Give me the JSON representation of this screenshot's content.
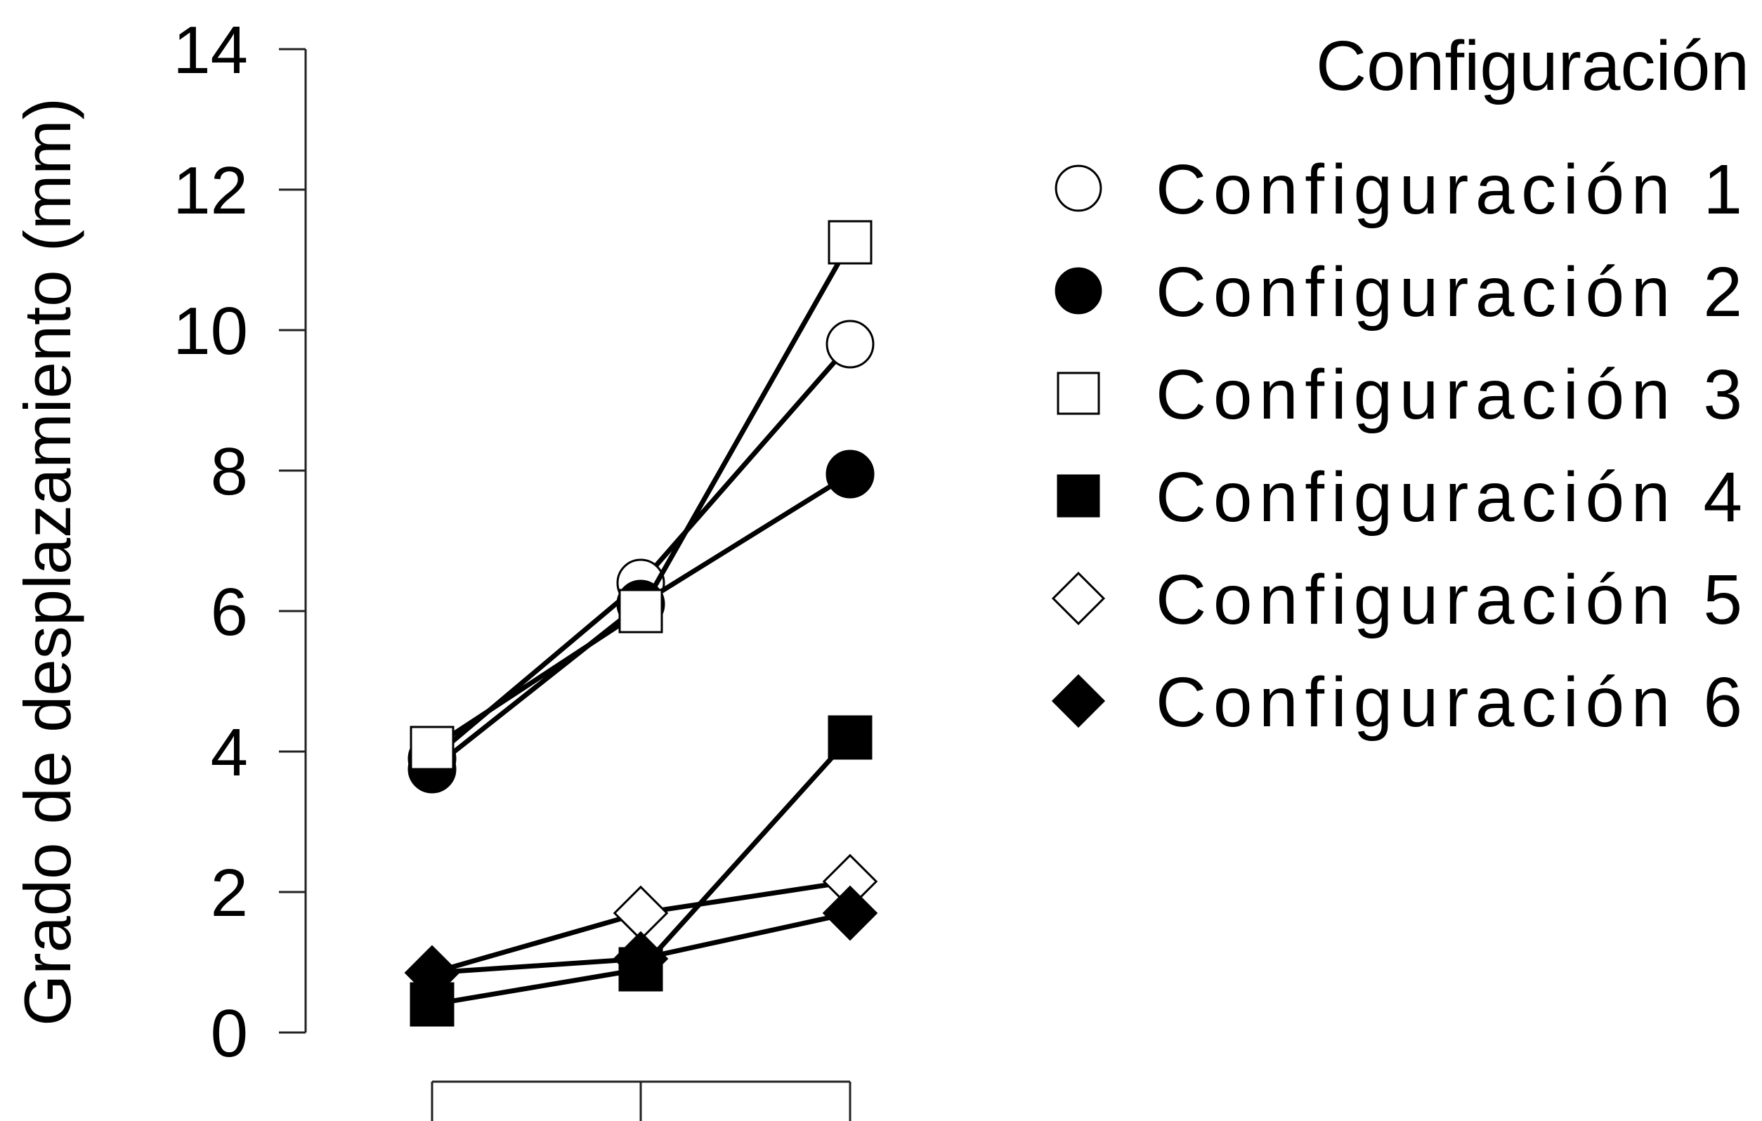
{
  "chart_data": {
    "type": "line",
    "title": "",
    "xlabel": "",
    "ylabel": "Grado de desplazamiento (mm)",
    "ylim": [
      0,
      14
    ],
    "yticks": [
      0,
      2,
      4,
      6,
      8,
      10,
      12,
      14
    ],
    "x": [
      1,
      2,
      3
    ],
    "xtick_labels": [
      "",
      "",
      ""
    ],
    "grid": false,
    "legend": {
      "title": "Configuración",
      "position": "top-right"
    },
    "series": [
      {
        "name": "Configuración 1",
        "marker": "circle-open",
        "values": [
          3.9,
          6.4,
          9.8
        ]
      },
      {
        "name": "Configuración 2",
        "marker": "circle-filled",
        "values": [
          3.75,
          6.1,
          7.95
        ]
      },
      {
        "name": "Configuración 3",
        "marker": "square-open",
        "values": [
          4.05,
          6.0,
          11.25
        ]
      },
      {
        "name": "Configuración 4",
        "marker": "square-filled",
        "values": [
          0.4,
          0.9,
          4.2
        ]
      },
      {
        "name": "Configuración 5",
        "marker": "diamond-open",
        "values": [
          0.85,
          1.7,
          2.15
        ]
      },
      {
        "name": "Configuración 6",
        "marker": "diamond-filled",
        "values": [
          0.85,
          1.05,
          1.7
        ]
      }
    ]
  }
}
